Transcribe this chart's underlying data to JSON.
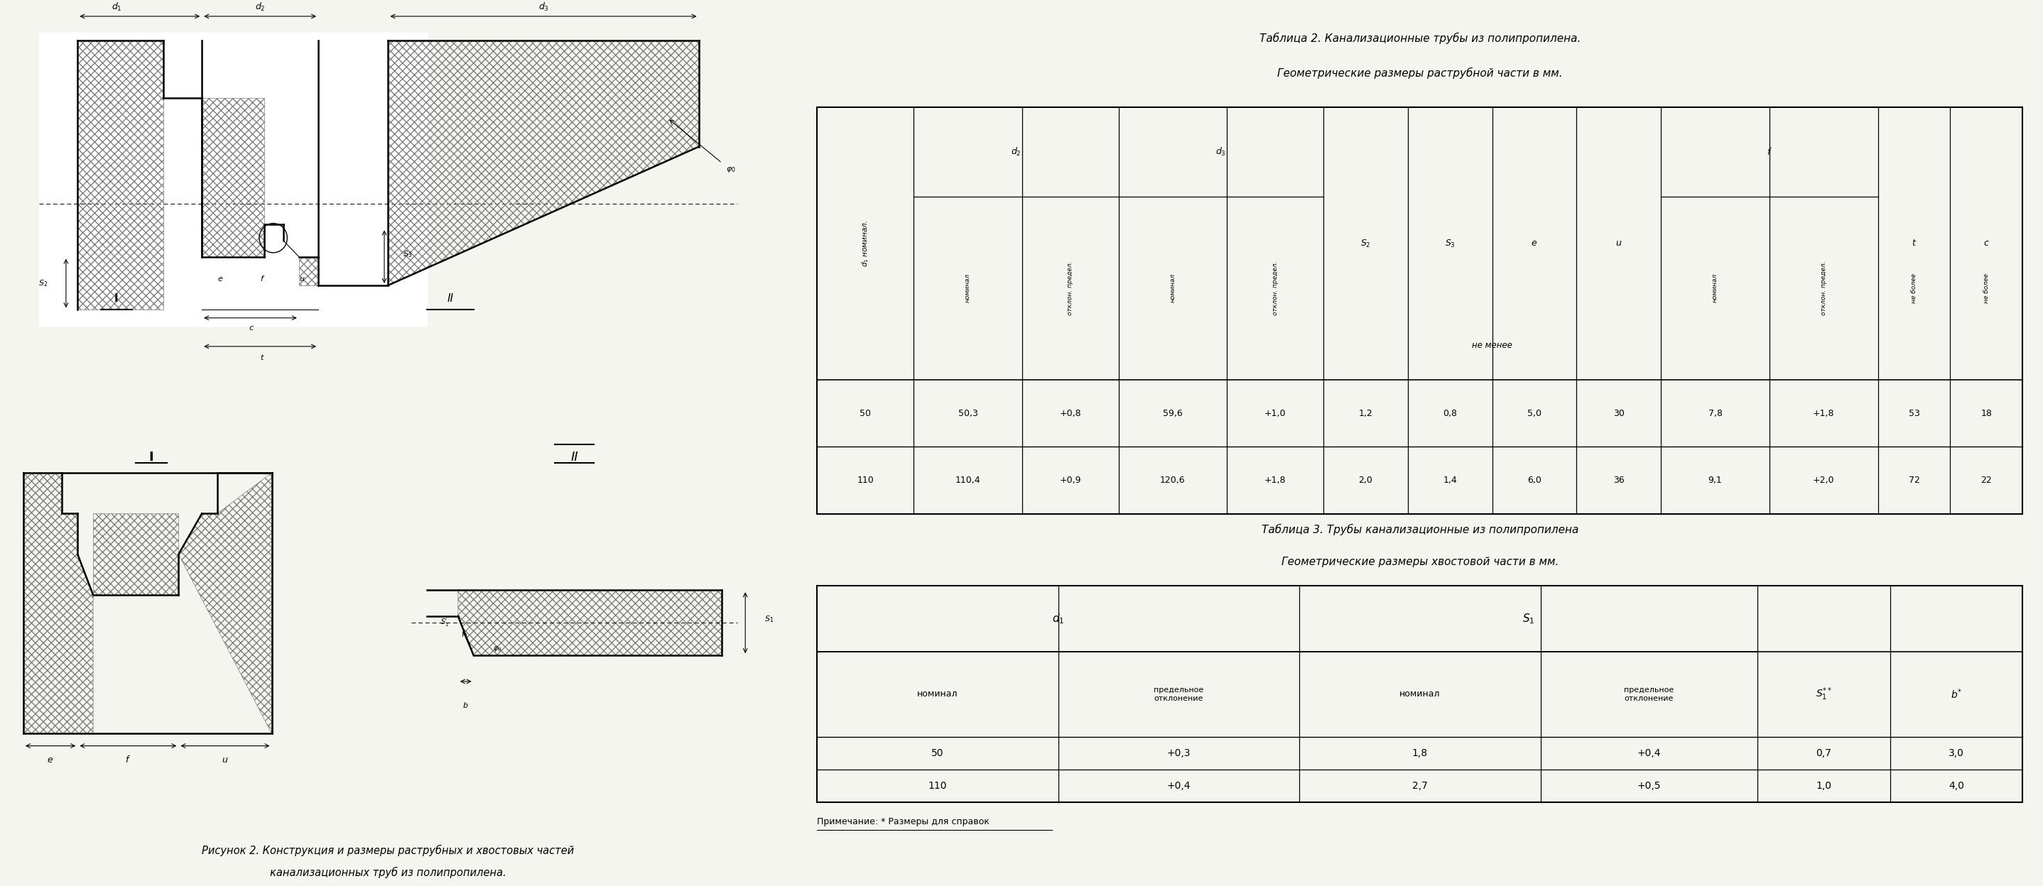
{
  "fig_width": 28.76,
  "fig_height": 12.48,
  "bg_color": "#f5f5f0",
  "table2_title_line1": "Таблица 2. Канализационные трубы из полипропилена.",
  "table2_title_line2": "Геометрические размеры раструбной части в мм.",
  "table3_title_line1": "Таблица 3. Трубы канализационные из полипропилена",
  "table3_title_line2": "Геометрические размеры хвостовой части в мм.",
  "fig_caption_line1": "Рисунок 2. Конструкция и размеры раструбных и хвостовых частей",
  "fig_caption_line2": "канализационных труб из полипропилена.",
  "table2_data": [
    [
      "50",
      "50,3",
      "+0,8",
      "59,6",
      "+1,0",
      "1,2",
      "0,8",
      "5,0",
      "30",
      "7,8",
      "+1,8",
      "53",
      "18"
    ],
    [
      "110",
      "110,4",
      "+0,9",
      "120,6",
      "+1,8",
      "2,0",
      "1,4",
      "6,0",
      "36",
      "9,1",
      "+2,0",
      "72",
      "22"
    ]
  ],
  "table3_data": [
    [
      "50",
      "+0,3",
      "1,8",
      "+0,4",
      "0,7",
      "3,0"
    ],
    [
      "110",
      "+0,4",
      "2,7",
      "+0,5",
      "1,0",
      "4,0"
    ]
  ],
  "note_text": "Примечание: * Размеры для справок"
}
